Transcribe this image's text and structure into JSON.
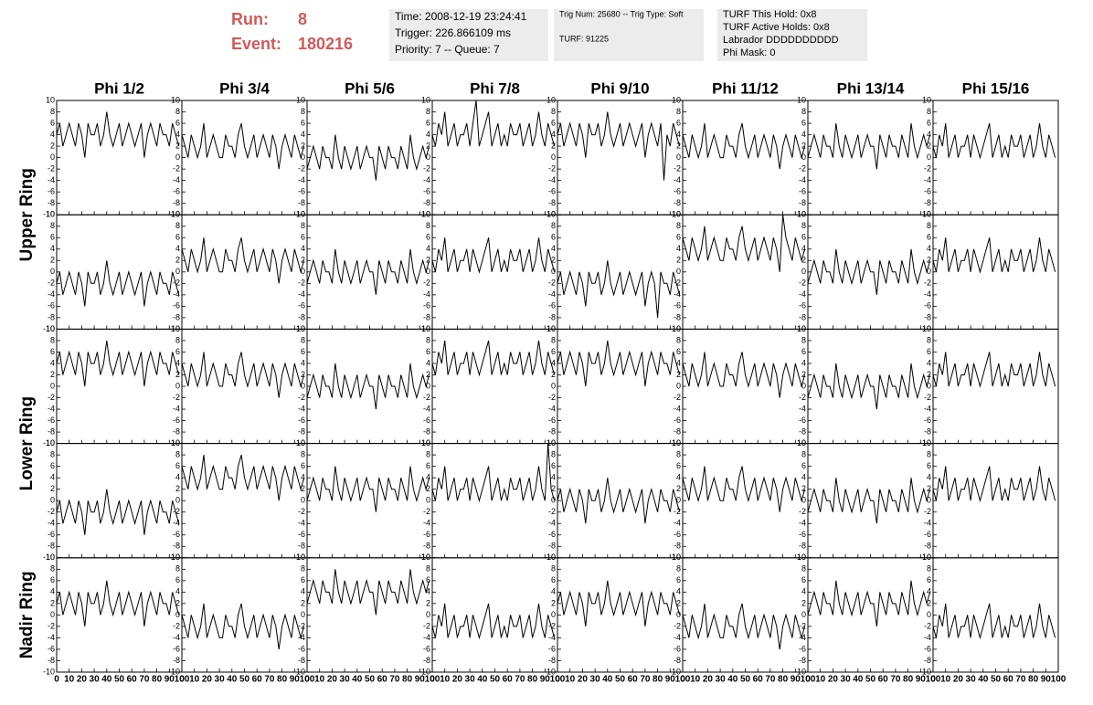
{
  "header": {
    "run_label": "Run:",
    "run": "8",
    "event_label": "Event:",
    "event": "180216",
    "info": [
      [
        "Time: 2008-12-19 23:24:41",
        "Trigger: 226.866109 ms",
        "Priority: 7 -- Queue: 7"
      ],
      [
        "Trig Num: 25680 -- Trig Type: Soft",
        "TURF: 91225"
      ],
      [
        "TURF This Hold: 0x8",
        "TURF Active Holds: 0x8",
        "Labrador DDDDDDDDDD",
        "Phi Mask: 0"
      ]
    ]
  },
  "columns": [
    "Phi 1/2",
    "Phi 3/4",
    "Phi 5/6",
    "Phi 7/8",
    "Phi 9/10",
    "Phi 11/12",
    "Phi 13/14",
    "Phi 15/16"
  ],
  "rings": [
    "Upper Ring",
    "Lower Ring",
    "Nadir Ring"
  ],
  "xlim": [
    0,
    100
  ],
  "ylim": [
    -10,
    10
  ],
  "xticks": [
    0,
    10,
    20,
    30,
    40,
    50,
    60,
    70,
    80,
    90,
    100
  ],
  "yticks": [
    -10,
    -8,
    -6,
    -4,
    -2,
    0,
    2,
    4,
    6,
    8,
    10
  ],
  "x": [
    0,
    2.5,
    5,
    7.5,
    10,
    12.5,
    15,
    17.5,
    20,
    22.5,
    25,
    27.5,
    30,
    32.5,
    35,
    37.5,
    40,
    42.5,
    45,
    47.5,
    50,
    52.5,
    55,
    57.5,
    60,
    62.5,
    65,
    67.5,
    70,
    72.5,
    75,
    77.5,
    80,
    82.5,
    85,
    87.5,
    90,
    92.5,
    95,
    97.5
  ],
  "waveforms": [
    [
      [
        4,
        6,
        2,
        4,
        6,
        4,
        2,
        6,
        4,
        0,
        6,
        4,
        4,
        6,
        2,
        4,
        8,
        4,
        2,
        4,
        6,
        2,
        4,
        6,
        4,
        2,
        4,
        6,
        0,
        4,
        6,
        4,
        2,
        6,
        4,
        4,
        2,
        6,
        4,
        2
      ],
      [
        4,
        2,
        0,
        4,
        2,
        0,
        2,
        6,
        0,
        2,
        4,
        2,
        0,
        0,
        4,
        2,
        2,
        0,
        4,
        6,
        2,
        0,
        2,
        4,
        0,
        2,
        4,
        2,
        0,
        4,
        2,
        -2,
        2,
        4,
        2,
        0,
        4,
        2,
        0,
        2
      ],
      [
        -2,
        0,
        2,
        0,
        -2,
        2,
        0,
        0,
        -2,
        4,
        0,
        -2,
        2,
        0,
        -2,
        0,
        2,
        -2,
        0,
        2,
        0,
        0,
        -4,
        2,
        0,
        -2,
        2,
        0,
        0,
        -2,
        2,
        0,
        -2,
        4,
        0,
        -2,
        0,
        2,
        0,
        2
      ],
      [
        4,
        2,
        6,
        4,
        8,
        2,
        4,
        6,
        2,
        4,
        4,
        6,
        2,
        6,
        10,
        2,
        4,
        6,
        8,
        2,
        4,
        6,
        2,
        4,
        2,
        6,
        4,
        4,
        6,
        2,
        4,
        6,
        2,
        4,
        8,
        4,
        2,
        6,
        4,
        2
      ],
      [
        4,
        6,
        2,
        4,
        6,
        4,
        2,
        6,
        4,
        0,
        6,
        4,
        4,
        6,
        2,
        4,
        8,
        4,
        2,
        4,
        6,
        2,
        4,
        6,
        4,
        2,
        4,
        6,
        0,
        4,
        6,
        4,
        2,
        6,
        -4,
        4,
        2,
        6,
        4,
        2
      ],
      [
        4,
        2,
        0,
        4,
        2,
        0,
        2,
        6,
        0,
        2,
        4,
        2,
        0,
        0,
        4,
        2,
        2,
        0,
        4,
        6,
        2,
        0,
        2,
        4,
        0,
        2,
        4,
        2,
        0,
        4,
        2,
        -2,
        2,
        4,
        2,
        0,
        4,
        2,
        0,
        2
      ],
      [
        0,
        2,
        4,
        2,
        0,
        4,
        2,
        2,
        0,
        6,
        2,
        0,
        4,
        2,
        0,
        2,
        4,
        0,
        2,
        4,
        2,
        2,
        -2,
        4,
        2,
        0,
        4,
        2,
        2,
        0,
        4,
        2,
        0,
        6,
        2,
        0,
        2,
        4,
        2,
        4
      ],
      [
        2,
        0,
        4,
        2,
        6,
        0,
        2,
        4,
        0,
        2,
        2,
        4,
        0,
        4,
        2,
        0,
        2,
        4,
        6,
        0,
        2,
        4,
        0,
        2,
        0,
        4,
        2,
        2,
        4,
        0,
        2,
        4,
        0,
        2,
        6,
        2,
        0,
        4,
        2,
        0
      ]
    ],
    [
      [
        -2,
        0,
        -4,
        -2,
        0,
        -2,
        -4,
        0,
        -2,
        -6,
        0,
        -2,
        -2,
        0,
        -4,
        -2,
        2,
        -2,
        -4,
        -2,
        0,
        -4,
        -2,
        0,
        -2,
        -4,
        -2,
        0,
        -6,
        -2,
        0,
        -2,
        -4,
        0,
        -2,
        -2,
        -4,
        0,
        -2,
        -4
      ],
      [
        4,
        2,
        0,
        4,
        2,
        0,
        2,
        6,
        0,
        2,
        4,
        2,
        0,
        0,
        4,
        2,
        2,
        0,
        4,
        6,
        2,
        0,
        2,
        4,
        0,
        2,
        4,
        2,
        0,
        4,
        2,
        -2,
        2,
        4,
        2,
        0,
        4,
        2,
        0,
        2
      ],
      [
        -2,
        0,
        2,
        0,
        -2,
        2,
        0,
        0,
        -2,
        4,
        0,
        -2,
        2,
        0,
        -2,
        0,
        2,
        -2,
        0,
        2,
        0,
        0,
        -4,
        2,
        0,
        -2,
        2,
        0,
        0,
        -2,
        2,
        0,
        -2,
        4,
        0,
        -2,
        0,
        2,
        0,
        2
      ],
      [
        2,
        0,
        4,
        2,
        6,
        0,
        2,
        4,
        0,
        2,
        2,
        4,
        0,
        4,
        2,
        0,
        2,
        4,
        6,
        0,
        2,
        4,
        0,
        2,
        0,
        4,
        2,
        2,
        4,
        0,
        2,
        4,
        0,
        2,
        6,
        2,
        0,
        4,
        2,
        0
      ],
      [
        -2,
        0,
        -4,
        -2,
        0,
        -2,
        -4,
        0,
        -2,
        -6,
        0,
        -2,
        -2,
        0,
        -4,
        -2,
        2,
        -2,
        -4,
        -2,
        0,
        -4,
        -2,
        0,
        -2,
        -4,
        -2,
        0,
        -6,
        -2,
        0,
        -2,
        -8,
        0,
        -2,
        -2,
        -4,
        0,
        -2,
        -4
      ],
      [
        6,
        4,
        2,
        6,
        4,
        2,
        4,
        8,
        2,
        4,
        6,
        4,
        2,
        2,
        6,
        4,
        4,
        2,
        6,
        8,
        4,
        2,
        4,
        6,
        2,
        4,
        6,
        4,
        2,
        6,
        4,
        0,
        10,
        6,
        4,
        2,
        6,
        4,
        2,
        4
      ],
      [
        -2,
        0,
        2,
        0,
        -2,
        2,
        0,
        0,
        -2,
        4,
        0,
        -2,
        2,
        0,
        -2,
        0,
        2,
        -2,
        0,
        2,
        0,
        0,
        -4,
        2,
        0,
        -2,
        2,
        0,
        0,
        -2,
        2,
        0,
        -2,
        4,
        0,
        -2,
        0,
        2,
        0,
        2
      ],
      [
        2,
        0,
        4,
        2,
        6,
        0,
        2,
        4,
        0,
        2,
        2,
        4,
        0,
        4,
        2,
        0,
        2,
        4,
        6,
        0,
        2,
        4,
        0,
        2,
        0,
        4,
        2,
        2,
        4,
        0,
        2,
        4,
        0,
        2,
        6,
        2,
        0,
        4,
        2,
        0
      ]
    ],
    [
      [
        4,
        6,
        2,
        4,
        6,
        4,
        2,
        6,
        4,
        0,
        6,
        4,
        4,
        6,
        2,
        4,
        8,
        4,
        2,
        4,
        6,
        2,
        4,
        6,
        4,
        2,
        4,
        6,
        0,
        4,
        6,
        4,
        2,
        6,
        4,
        4,
        2,
        6,
        4,
        2
      ],
      [
        4,
        2,
        0,
        4,
        2,
        0,
        2,
        6,
        0,
        2,
        4,
        2,
        0,
        0,
        4,
        2,
        2,
        0,
        4,
        6,
        2,
        0,
        2,
        4,
        0,
        2,
        4,
        2,
        0,
        4,
        2,
        -2,
        2,
        4,
        2,
        0,
        4,
        2,
        0,
        2
      ],
      [
        -2,
        0,
        2,
        0,
        -2,
        2,
        0,
        0,
        -2,
        4,
        0,
        -2,
        2,
        0,
        -2,
        0,
        2,
        -2,
        0,
        2,
        0,
        0,
        -4,
        2,
        0,
        -2,
        2,
        0,
        0,
        -2,
        2,
        0,
        -2,
        4,
        0,
        -2,
        0,
        2,
        0,
        2
      ],
      [
        4,
        2,
        6,
        4,
        8,
        2,
        4,
        6,
        2,
        4,
        4,
        6,
        2,
        6,
        4,
        2,
        4,
        6,
        8,
        2,
        4,
        6,
        2,
        4,
        2,
        6,
        4,
        4,
        6,
        2,
        4,
        6,
        2,
        4,
        8,
        4,
        2,
        6,
        4,
        2
      ],
      [
        4,
        6,
        2,
        4,
        6,
        4,
        2,
        6,
        4,
        0,
        6,
        4,
        4,
        6,
        2,
        4,
        8,
        4,
        2,
        4,
        6,
        2,
        4,
        6,
        4,
        2,
        4,
        6,
        0,
        4,
        6,
        4,
        2,
        6,
        4,
        4,
        2,
        6,
        4,
        2
      ],
      [
        4,
        2,
        0,
        4,
        2,
        0,
        2,
        6,
        0,
        2,
        4,
        2,
        0,
        0,
        4,
        2,
        2,
        0,
        4,
        6,
        2,
        0,
        2,
        4,
        0,
        2,
        4,
        2,
        0,
        4,
        2,
        -2,
        2,
        4,
        2,
        0,
        4,
        2,
        0,
        2
      ],
      [
        -2,
        0,
        2,
        0,
        -2,
        2,
        0,
        0,
        -2,
        4,
        0,
        -2,
        2,
        0,
        -2,
        0,
        2,
        -2,
        0,
        2,
        0,
        0,
        -4,
        2,
        0,
        -2,
        2,
        0,
        0,
        -2,
        2,
        0,
        -2,
        4,
        0,
        -2,
        0,
        2,
        0,
        2
      ],
      [
        2,
        0,
        4,
        2,
        6,
        0,
        2,
        4,
        0,
        2,
        2,
        4,
        0,
        4,
        2,
        0,
        2,
        4,
        6,
        0,
        2,
        4,
        0,
        2,
        0,
        4,
        2,
        2,
        4,
        0,
        2,
        4,
        0,
        2,
        6,
        2,
        0,
        4,
        2,
        0
      ]
    ],
    [
      [
        -2,
        0,
        -4,
        -2,
        0,
        -2,
        -4,
        0,
        -2,
        -6,
        0,
        -2,
        -2,
        0,
        -4,
        -2,
        2,
        -2,
        -4,
        -2,
        0,
        -4,
        -2,
        0,
        -2,
        -4,
        -2,
        0,
        -6,
        -2,
        0,
        -2,
        -4,
        0,
        -2,
        -2,
        -4,
        0,
        -2,
        -4
      ],
      [
        6,
        4,
        2,
        6,
        4,
        2,
        4,
        8,
        2,
        4,
        6,
        4,
        2,
        2,
        6,
        4,
        4,
        2,
        6,
        8,
        4,
        2,
        4,
        6,
        2,
        4,
        6,
        4,
        2,
        6,
        4,
        0,
        4,
        6,
        4,
        2,
        6,
        4,
        2,
        4
      ],
      [
        0,
        2,
        4,
        2,
        0,
        4,
        2,
        2,
        0,
        6,
        2,
        0,
        4,
        2,
        0,
        2,
        4,
        0,
        2,
        4,
        2,
        2,
        -2,
        4,
        2,
        0,
        4,
        2,
        2,
        0,
        4,
        2,
        0,
        6,
        2,
        0,
        2,
        4,
        2,
        4
      ],
      [
        2,
        0,
        4,
        2,
        6,
        0,
        2,
        4,
        0,
        2,
        2,
        4,
        0,
        4,
        2,
        0,
        2,
        4,
        6,
        0,
        2,
        4,
        0,
        2,
        0,
        4,
        2,
        2,
        4,
        0,
        2,
        4,
        0,
        2,
        6,
        2,
        0,
        10,
        2,
        0
      ],
      [
        0,
        2,
        -2,
        0,
        2,
        0,
        -2,
        2,
        0,
        -4,
        2,
        0,
        0,
        2,
        -2,
        0,
        4,
        0,
        -2,
        0,
        2,
        -2,
        0,
        2,
        0,
        -2,
        0,
        2,
        -4,
        0,
        2,
        0,
        -2,
        2,
        0,
        0,
        -2,
        2,
        0,
        -2
      ],
      [
        4,
        2,
        0,
        4,
        2,
        0,
        2,
        6,
        0,
        2,
        4,
        2,
        0,
        0,
        4,
        2,
        2,
        0,
        4,
        6,
        2,
        0,
        2,
        4,
        0,
        2,
        4,
        2,
        0,
        4,
        2,
        -2,
        2,
        4,
        2,
        0,
        4,
        2,
        0,
        2
      ],
      [
        -2,
        0,
        2,
        0,
        -2,
        2,
        0,
        0,
        -2,
        4,
        0,
        -2,
        2,
        0,
        -2,
        0,
        2,
        -2,
        0,
        2,
        0,
        0,
        -4,
        2,
        0,
        -2,
        2,
        0,
        0,
        -2,
        2,
        0,
        -2,
        4,
        0,
        -2,
        0,
        2,
        0,
        2
      ],
      [
        2,
        0,
        4,
        2,
        6,
        0,
        2,
        4,
        0,
        2,
        2,
        4,
        0,
        4,
        2,
        0,
        2,
        4,
        6,
        0,
        2,
        4,
        0,
        2,
        0,
        4,
        2,
        2,
        4,
        0,
        2,
        4,
        0,
        2,
        6,
        2,
        0,
        4,
        2,
        0
      ]
    ],
    [
      [
        2,
        4,
        0,
        2,
        4,
        2,
        0,
        4,
        2,
        -2,
        4,
        2,
        2,
        4,
        0,
        2,
        6,
        2,
        0,
        2,
        4,
        0,
        2,
        4,
        2,
        0,
        2,
        4,
        -2,
        2,
        4,
        2,
        0,
        4,
        2,
        2,
        0,
        4,
        2,
        0
      ],
      [
        0,
        -2,
        -4,
        0,
        -2,
        -4,
        -2,
        2,
        -4,
        -2,
        0,
        -2,
        -4,
        -4,
        0,
        -2,
        -2,
        -4,
        0,
        2,
        -2,
        -4,
        -2,
        0,
        -4,
        -2,
        0,
        -2,
        -4,
        0,
        -2,
        -6,
        -2,
        0,
        -2,
        -4,
        0,
        -2,
        -4,
        -2
      ],
      [
        2,
        4,
        6,
        4,
        2,
        6,
        4,
        4,
        2,
        8,
        4,
        2,
        6,
        4,
        2,
        4,
        6,
        2,
        4,
        6,
        4,
        4,
        0,
        6,
        4,
        2,
        6,
        4,
        4,
        2,
        6,
        4,
        2,
        8,
        4,
        2,
        4,
        6,
        4,
        6
      ],
      [
        -2,
        -4,
        0,
        -2,
        2,
        -4,
        -2,
        0,
        -4,
        -2,
        -2,
        0,
        -4,
        0,
        -2,
        -4,
        -2,
        0,
        2,
        -4,
        -2,
        0,
        -4,
        -2,
        -4,
        0,
        -2,
        -2,
        0,
        -4,
        -2,
        0,
        -4,
        -2,
        2,
        -2,
        -4,
        0,
        -2,
        -4
      ],
      [
        2,
        4,
        0,
        2,
        4,
        2,
        0,
        4,
        2,
        -2,
        4,
        2,
        2,
        4,
        0,
        2,
        6,
        2,
        0,
        2,
        4,
        0,
        2,
        4,
        2,
        0,
        2,
        4,
        -2,
        2,
        4,
        2,
        0,
        4,
        2,
        2,
        0,
        4,
        2,
        0
      ],
      [
        0,
        -2,
        -4,
        0,
        -2,
        -4,
        -2,
        2,
        -4,
        -2,
        0,
        -2,
        -4,
        -4,
        0,
        -2,
        -2,
        -4,
        0,
        2,
        -2,
        -4,
        -2,
        0,
        -4,
        -2,
        0,
        -2,
        -4,
        0,
        -2,
        -6,
        -2,
        0,
        -2,
        -4,
        0,
        -2,
        -4,
        -2
      ],
      [
        0,
        2,
        4,
        2,
        0,
        4,
        2,
        2,
        0,
        6,
        2,
        0,
        4,
        2,
        0,
        2,
        4,
        0,
        2,
        4,
        2,
        2,
        -2,
        4,
        2,
        0,
        4,
        2,
        2,
        0,
        4,
        2,
        0,
        6,
        2,
        0,
        2,
        4,
        2,
        4
      ],
      [
        -2,
        -4,
        0,
        -2,
        2,
        -4,
        -2,
        0,
        -4,
        -2,
        -2,
        0,
        -4,
        0,
        -2,
        -4,
        -2,
        0,
        2,
        -4,
        -2,
        0,
        -4,
        -2,
        -4,
        0,
        -2,
        -2,
        0,
        -4,
        -2,
        0,
        -4,
        -2,
        2,
        -2,
        -4,
        0,
        -2,
        -4
      ]
    ]
  ]
}
